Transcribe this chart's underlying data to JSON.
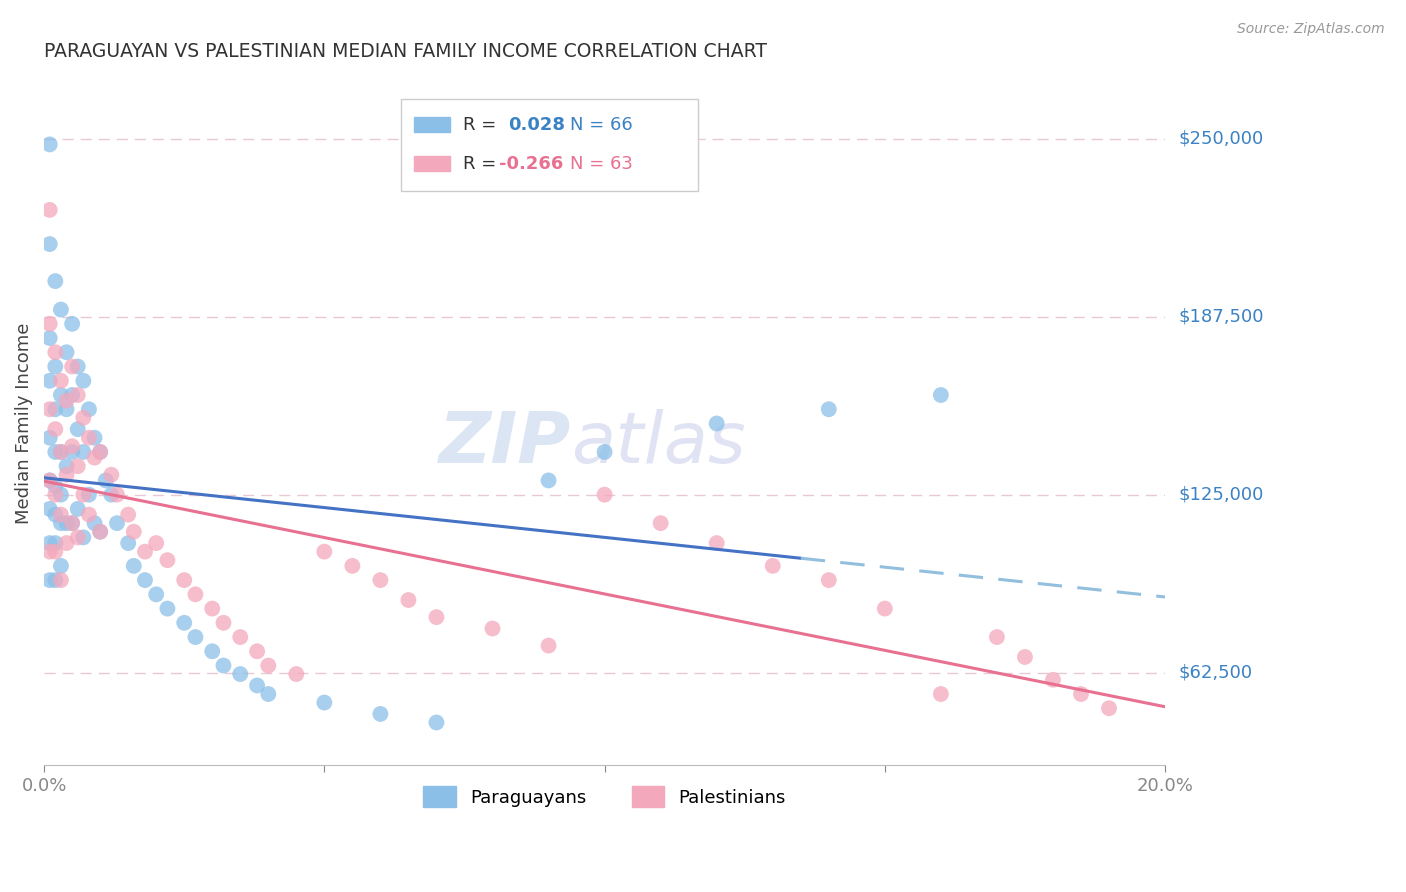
{
  "title": "PARAGUAYAN VS PALESTINIAN MEDIAN FAMILY INCOME CORRELATION CHART",
  "source": "Source: ZipAtlas.com",
  "ylabel": "Median Family Income",
  "xlim": [
    0.0,
    0.2
  ],
  "ylim": [
    30000,
    270000
  ],
  "xticks": [
    0.0,
    0.05,
    0.1,
    0.15,
    0.2
  ],
  "xticklabels": [
    "0.0%",
    "",
    "",
    "",
    "20.0%"
  ],
  "ytick_values": [
    62500,
    125000,
    187500,
    250000
  ],
  "ytick_labels": [
    "$62,500",
    "$125,000",
    "$187,500",
    "$250,000"
  ],
  "paraguayan_color": "#8BBFE8",
  "paraguayan_edge": "#8BBFE8",
  "palestinian_color": "#F4A8BC",
  "palestinian_edge": "#F4A8BC",
  "line_blue_solid": "#4472C4",
  "line_blue_dash": "#93BFDF",
  "line_pink": "#E87090",
  "background_color": "#ffffff",
  "grid_color": "#E8C8D4",
  "watermark_zip_color": "#C8D8EE",
  "watermark_atlas_color": "#C8CCEA",
  "para_x": [
    0.001,
    0.001,
    0.001,
    0.001,
    0.001,
    0.001,
    0.001,
    0.001,
    0.001,
    0.002,
    0.002,
    0.002,
    0.002,
    0.002,
    0.002,
    0.002,
    0.002,
    0.003,
    0.003,
    0.003,
    0.003,
    0.003,
    0.003,
    0.004,
    0.004,
    0.004,
    0.004,
    0.005,
    0.005,
    0.005,
    0.005,
    0.006,
    0.006,
    0.006,
    0.007,
    0.007,
    0.007,
    0.008,
    0.008,
    0.009,
    0.009,
    0.01,
    0.01,
    0.011,
    0.012,
    0.013,
    0.015,
    0.016,
    0.018,
    0.02,
    0.022,
    0.025,
    0.027,
    0.03,
    0.032,
    0.035,
    0.038,
    0.04,
    0.05,
    0.06,
    0.07,
    0.09,
    0.1,
    0.12,
    0.14,
    0.16
  ],
  "para_y": [
    248000,
    213000,
    180000,
    165000,
    145000,
    130000,
    120000,
    108000,
    95000,
    200000,
    170000,
    155000,
    140000,
    128000,
    118000,
    108000,
    95000,
    190000,
    160000,
    140000,
    125000,
    115000,
    100000,
    175000,
    155000,
    135000,
    115000,
    185000,
    160000,
    140000,
    115000,
    170000,
    148000,
    120000,
    165000,
    140000,
    110000,
    155000,
    125000,
    145000,
    115000,
    140000,
    112000,
    130000,
    125000,
    115000,
    108000,
    100000,
    95000,
    90000,
    85000,
    80000,
    75000,
    70000,
    65000,
    62000,
    58000,
    55000,
    52000,
    48000,
    45000,
    130000,
    140000,
    150000,
    155000,
    160000
  ],
  "pal_x": [
    0.001,
    0.001,
    0.001,
    0.001,
    0.001,
    0.002,
    0.002,
    0.002,
    0.002,
    0.003,
    0.003,
    0.003,
    0.003,
    0.004,
    0.004,
    0.004,
    0.005,
    0.005,
    0.005,
    0.006,
    0.006,
    0.006,
    0.007,
    0.007,
    0.008,
    0.008,
    0.009,
    0.01,
    0.01,
    0.012,
    0.013,
    0.015,
    0.016,
    0.018,
    0.02,
    0.022,
    0.025,
    0.027,
    0.03,
    0.032,
    0.035,
    0.038,
    0.04,
    0.045,
    0.05,
    0.055,
    0.06,
    0.065,
    0.07,
    0.08,
    0.09,
    0.1,
    0.11,
    0.12,
    0.13,
    0.14,
    0.15,
    0.16,
    0.17,
    0.175,
    0.18,
    0.185,
    0.19
  ],
  "pal_y": [
    225000,
    185000,
    155000,
    130000,
    105000,
    175000,
    148000,
    125000,
    105000,
    165000,
    140000,
    118000,
    95000,
    158000,
    132000,
    108000,
    170000,
    142000,
    115000,
    160000,
    135000,
    110000,
    152000,
    125000,
    145000,
    118000,
    138000,
    140000,
    112000,
    132000,
    125000,
    118000,
    112000,
    105000,
    108000,
    102000,
    95000,
    90000,
    85000,
    80000,
    75000,
    70000,
    65000,
    62000,
    105000,
    100000,
    95000,
    88000,
    82000,
    78000,
    72000,
    125000,
    115000,
    108000,
    100000,
    95000,
    85000,
    55000,
    75000,
    68000,
    60000,
    55000,
    50000
  ]
}
